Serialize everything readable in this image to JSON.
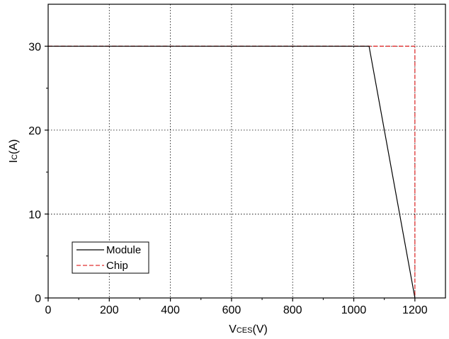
{
  "chart_data": {
    "type": "line",
    "title": "",
    "xlabel": {
      "main": "V",
      "sub": "CES",
      "suffix": "(V)"
    },
    "ylabel": {
      "main": "I",
      "sub": "C",
      "suffix": "(A)"
    },
    "xlim": [
      0,
      1300
    ],
    "ylim": [
      0,
      35
    ],
    "xticks": [
      0,
      200,
      400,
      600,
      800,
      1000,
      1200
    ],
    "yticks": [
      0,
      10,
      20,
      30
    ],
    "grid": true,
    "legend_position": "bottom-left",
    "series": [
      {
        "name": "Module",
        "color": "#000000",
        "style": "solid",
        "points": [
          [
            0,
            30
          ],
          [
            1050,
            30
          ],
          [
            1200,
            0
          ]
        ]
      },
      {
        "name": "Chip",
        "color": "#e03030",
        "style": "dashed",
        "points": [
          [
            0,
            30
          ],
          [
            1200,
            30
          ],
          [
            1200,
            0
          ]
        ]
      }
    ]
  }
}
